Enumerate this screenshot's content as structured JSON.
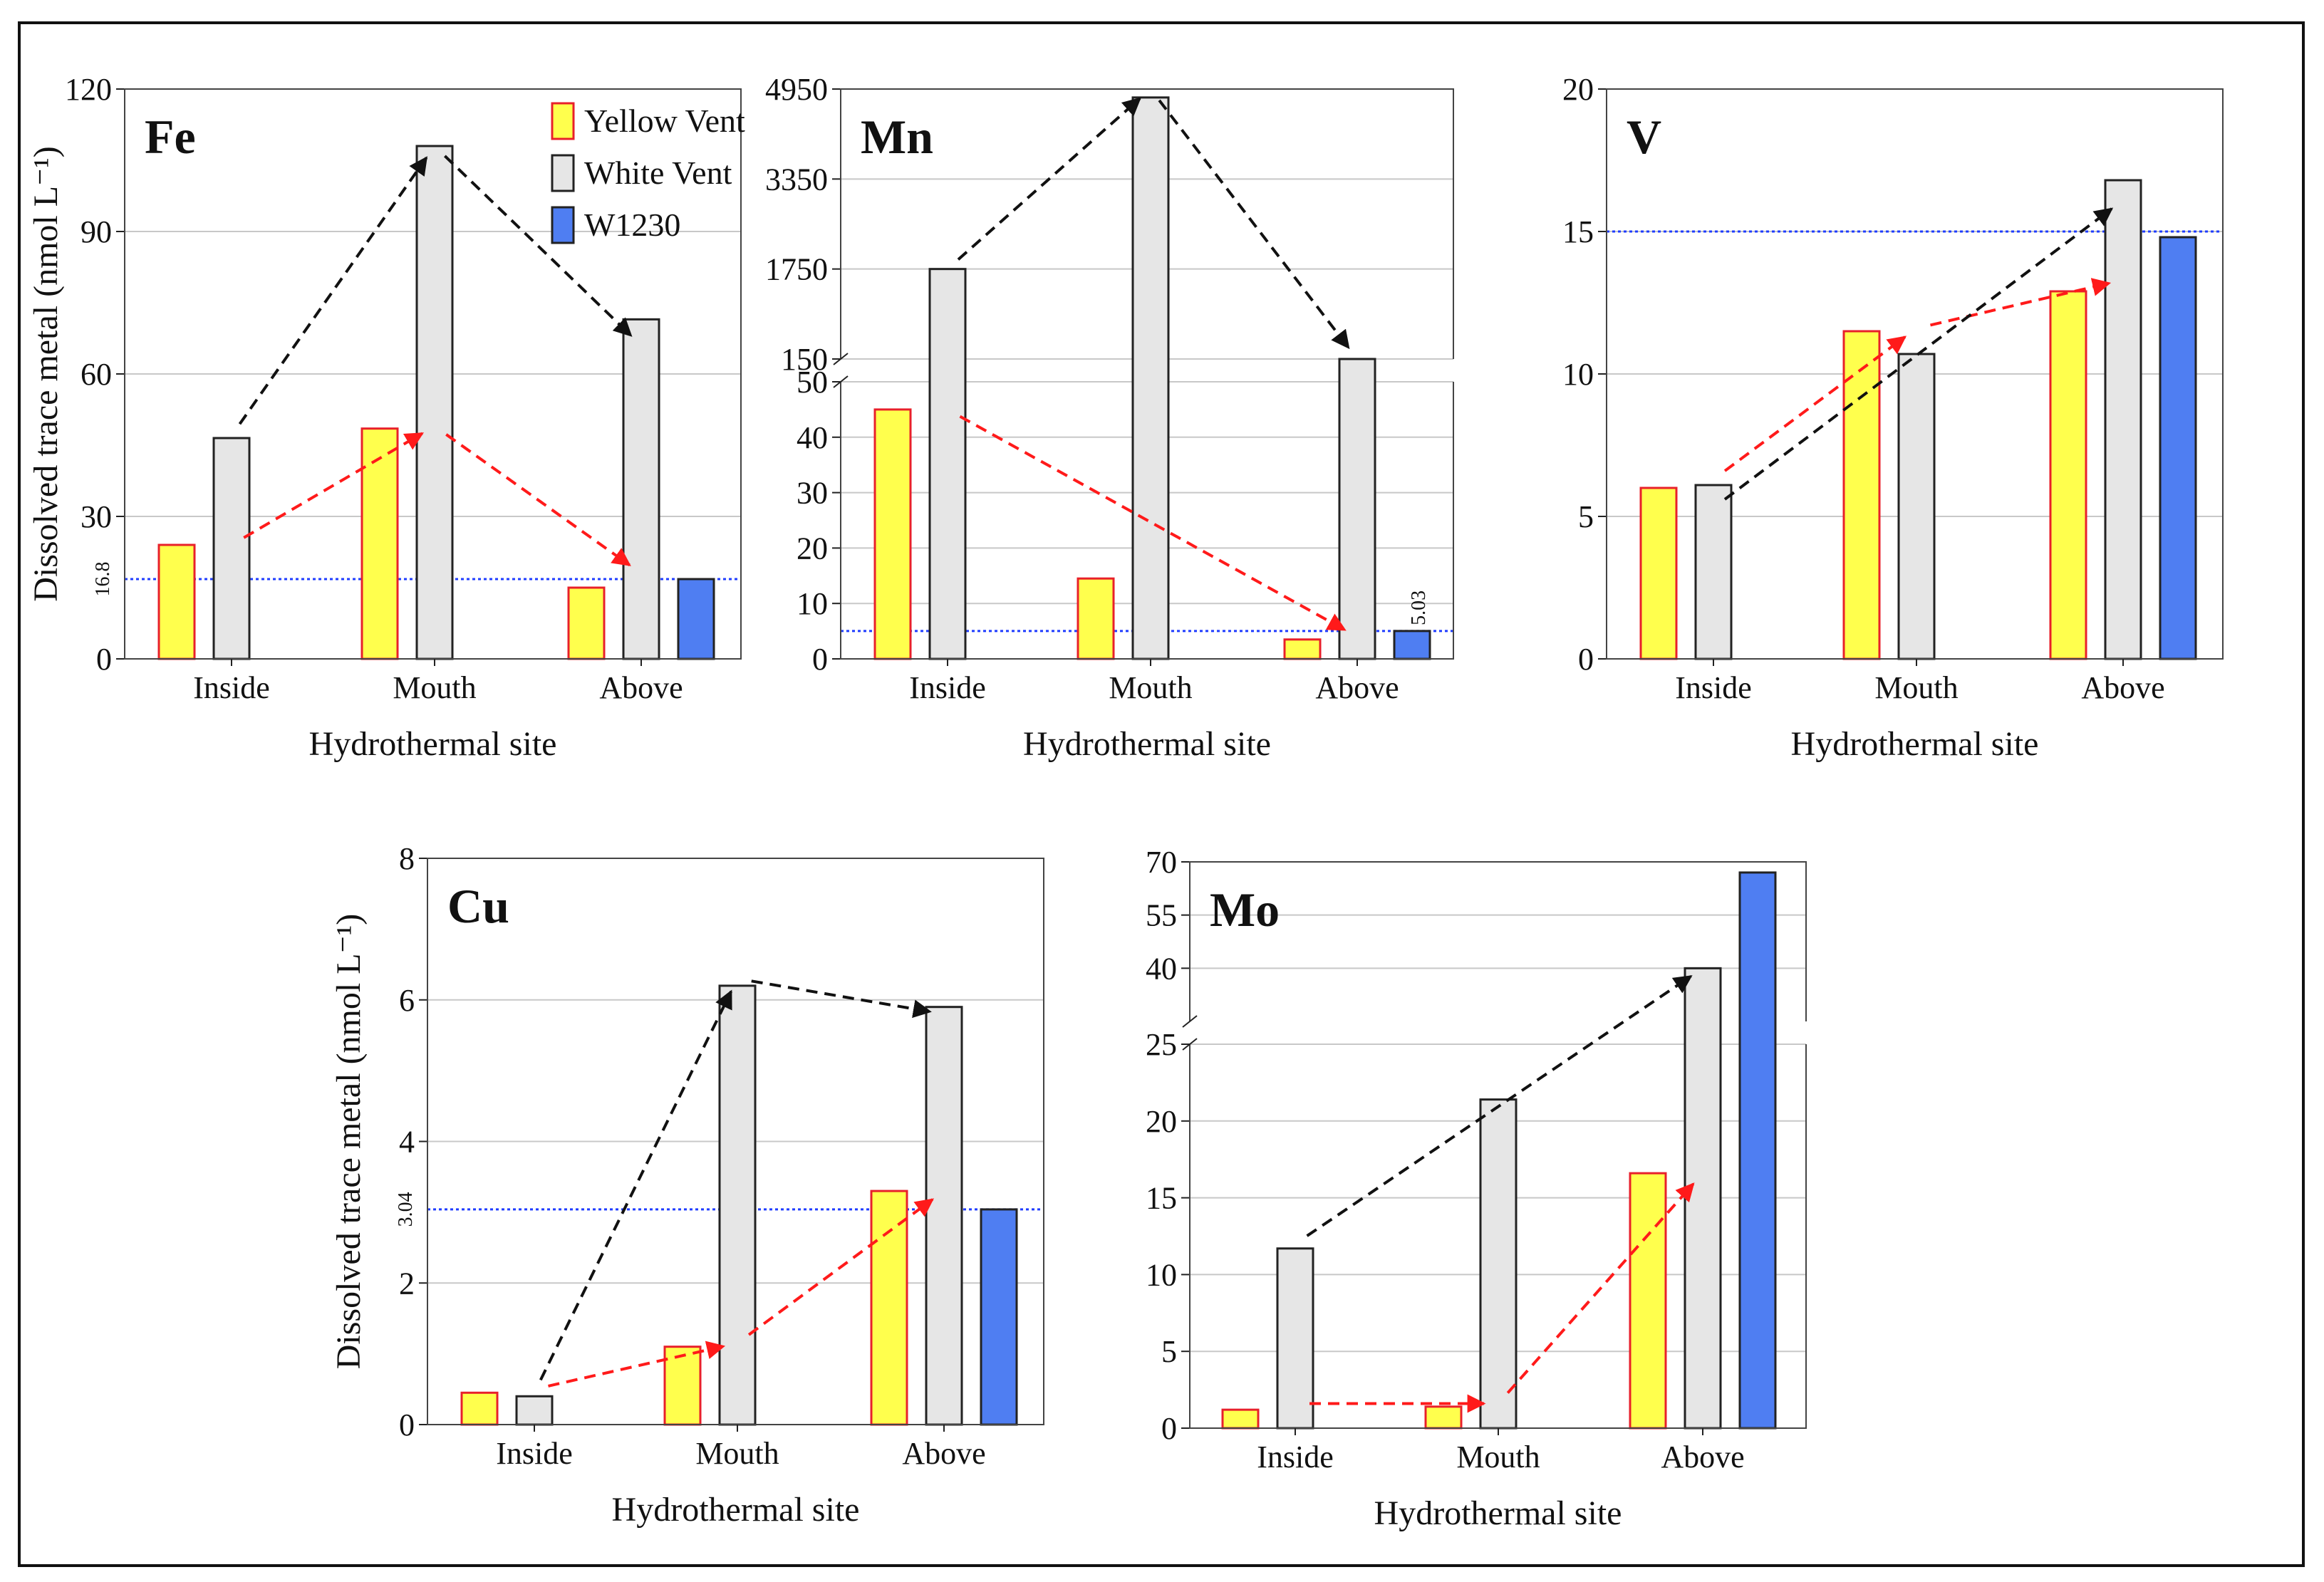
{
  "figure": {
    "x_axis_label": "Hydrothermal site",
    "y_axis_label": "Dissolved trace metal (nmol L⁻¹)",
    "legend": [
      {
        "label": "Yellow Vent",
        "fill": "#ffff4d",
        "stroke": "#e8202a"
      },
      {
        "label": "White Vent",
        "fill": "#e6e6e6",
        "stroke": "#222222"
      },
      {
        "label": "W1230",
        "fill": "#4f7ef2",
        "stroke": "#222222"
      }
    ],
    "colors": {
      "yellow": "#ffff4d",
      "yellow_edge": "#e8202a",
      "white": "#e6e6e6",
      "blue": "#4f7ef2",
      "ref_line": "#1f3cff",
      "red_arrow": "#ff1a1a",
      "black_arrow": "#111111",
      "grid": "#c8c8c8"
    }
  },
  "chart_data": [
    {
      "type": "bar",
      "title": "Fe",
      "categories": [
        "Inside",
        "Mouth",
        "Above"
      ],
      "series": [
        {
          "name": "Yellow Vent",
          "values": [
            24,
            48.5,
            15
          ]
        },
        {
          "name": "White Vent",
          "values": [
            46.5,
            108,
            71.5
          ]
        },
        {
          "name": "W1230",
          "values": [
            null,
            null,
            16.8
          ]
        }
      ],
      "ylim": [
        0,
        120
      ],
      "yticks": [
        "0",
        "30",
        "60",
        "90",
        "120"
      ],
      "reference_line": {
        "value": 16.8,
        "label": "16.8"
      },
      "xlabel": "Hydrothermal site",
      "ylabel": "Dissolved trace metal (nmol L⁻¹)",
      "legend": true,
      "legend_position": "top-right",
      "arrows": [
        {
          "color": "black",
          "from": [
            "Inside",
            47
          ],
          "to": [
            "Mouth",
            108
          ]
        },
        {
          "color": "black",
          "from": [
            "Mouth",
            108
          ],
          "to": [
            "Above",
            66
          ]
        },
        {
          "color": "red",
          "from": [
            "Inside",
            24
          ],
          "to": [
            "Mouth",
            49
          ]
        },
        {
          "color": "red",
          "from": [
            "Mouth",
            49
          ],
          "to": [
            "Above",
            18
          ]
        }
      ]
    },
    {
      "type": "bar",
      "title": "Mn",
      "categories": [
        "Inside",
        "Mouth",
        "Above"
      ],
      "series": [
        {
          "name": "Yellow Vent",
          "values": [
            45,
            14.5,
            3.5
          ]
        },
        {
          "name": "White Vent",
          "values": [
            1750,
            4800,
            150
          ]
        },
        {
          "name": "W1230",
          "values": [
            null,
            null,
            5.03
          ]
        }
      ],
      "broken_axis": {
        "lower": [
          0,
          50
        ],
        "upper": [
          150,
          4950
        ]
      },
      "yticks_lower": [
        "0",
        "10",
        "20",
        "30",
        "40",
        "50"
      ],
      "yticks_upper": [
        "150",
        "1750",
        "3350",
        "4950"
      ],
      "reference_line": {
        "value": 5.03,
        "label": "5.03"
      },
      "xlabel": "Hydrothermal site",
      "arrows": [
        {
          "color": "black",
          "from": [
            "Inside",
            1750
          ],
          "to": [
            "Mouth",
            4950
          ]
        },
        {
          "color": "black",
          "from": [
            "Mouth",
            4950
          ],
          "to": [
            "Above",
            150
          ]
        },
        {
          "color": "red",
          "from": [
            "Inside",
            45
          ],
          "to": [
            "Above",
            4
          ]
        }
      ]
    },
    {
      "type": "bar",
      "title": "V",
      "categories": [
        "Inside",
        "Mouth",
        "Above"
      ],
      "series": [
        {
          "name": "Yellow Vent",
          "values": [
            6,
            11.5,
            12.9
          ]
        },
        {
          "name": "White Vent",
          "values": [
            6.1,
            10.7,
            16.8
          ]
        },
        {
          "name": "W1230",
          "values": [
            null,
            null,
            14.8
          ]
        }
      ],
      "ylim": [
        0,
        20
      ],
      "yticks": [
        "0",
        "5",
        "10",
        "15",
        "20"
      ],
      "reference_line": {
        "value": 15,
        "label": ""
      },
      "xlabel": "Hydrothermal site",
      "arrows": [
        {
          "color": "red",
          "from": [
            "Inside",
            6.3
          ],
          "to": [
            "Mouth",
            11.6
          ]
        },
        {
          "color": "red",
          "from": [
            "Mouth",
            11.6
          ],
          "to": [
            "Above",
            13.3
          ]
        },
        {
          "color": "black",
          "from": [
            "Inside",
            5.3
          ],
          "to": [
            "Above",
            16.1
          ]
        }
      ]
    },
    {
      "type": "bar",
      "title": "Cu",
      "categories": [
        "Inside",
        "Mouth",
        "Above"
      ],
      "series": [
        {
          "name": "Yellow Vent",
          "values": [
            0.45,
            1.1,
            3.3
          ]
        },
        {
          "name": "White Vent",
          "values": [
            0.4,
            6.2,
            5.9
          ]
        },
        {
          "name": "W1230",
          "values": [
            null,
            null,
            3.04
          ]
        }
      ],
      "ylim": [
        0,
        8
      ],
      "yticks": [
        "0",
        "2",
        "4",
        "6",
        "8"
      ],
      "reference_line": {
        "value": 3.04,
        "label": "3.04"
      },
      "xlabel": "Hydrothermal site",
      "ylabel": "Dissolved trace metal (nmol L⁻¹)",
      "arrows": [
        {
          "color": "black",
          "from": [
            "Inside",
            0.45
          ],
          "to": [
            "Mouth",
            6.3
          ]
        },
        {
          "color": "black",
          "from": [
            "Mouth",
            6.3
          ],
          "to": [
            "Above",
            5.8
          ]
        },
        {
          "color": "red",
          "from": [
            "Inside",
            0.5
          ],
          "to": [
            "Mouth",
            1.15
          ]
        },
        {
          "color": "red",
          "from": [
            "Mouth",
            1.15
          ],
          "to": [
            "Above",
            3.3
          ]
        }
      ]
    },
    {
      "type": "bar",
      "title": "Mo",
      "categories": [
        "Inside",
        "Mouth",
        "Above"
      ],
      "series": [
        {
          "name": "Yellow Vent",
          "values": [
            1.2,
            1.4,
            16.6
          ]
        },
        {
          "name": "White Vent",
          "values": [
            11.7,
            21.4,
            40
          ]
        },
        {
          "name": "W1230",
          "values": [
            null,
            null,
            67
          ]
        }
      ],
      "broken_axis": {
        "lower": [
          0,
          25
        ],
        "upper": [
          25,
          70
        ]
      },
      "yticks_lower": [
        "0",
        "5",
        "10",
        "15",
        "20"
      ],
      "yticks_upper": [
        "25",
        "40",
        "55",
        "70"
      ],
      "xlabel": "Hydrothermal site",
      "arrows": [
        {
          "color": "red",
          "from": [
            "Inside",
            1.6
          ],
          "to": [
            "Mouth",
            1.6
          ]
        },
        {
          "color": "red",
          "from": [
            "Mouth",
            1.6
          ],
          "to": [
            "Above",
            16.6
          ]
        },
        {
          "color": "black",
          "from": [
            "Inside",
            12
          ],
          "to": [
            "Above",
            40
          ]
        }
      ]
    }
  ]
}
